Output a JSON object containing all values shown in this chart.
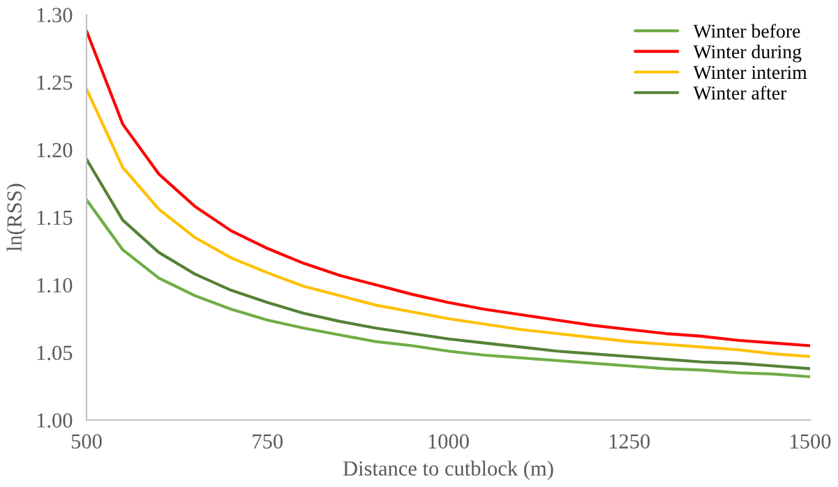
{
  "chart_data": {
    "type": "line",
    "xlabel": "Distance to cutblock (m)",
    "ylabel": "ln(RSS)",
    "x": [
      500,
      550,
      600,
      650,
      700,
      750,
      800,
      850,
      900,
      950,
      1000,
      1050,
      1100,
      1150,
      1200,
      1250,
      1300,
      1350,
      1400,
      1450,
      1500
    ],
    "series": [
      {
        "name": "Winter before",
        "color": "#70ad47",
        "values": [
          1.163,
          1.126,
          1.105,
          1.092,
          1.082,
          1.074,
          1.068,
          1.063,
          1.058,
          1.055,
          1.051,
          1.048,
          1.046,
          1.044,
          1.042,
          1.04,
          1.038,
          1.037,
          1.035,
          1.034,
          1.032
        ]
      },
      {
        "name": "Winter during",
        "color": "#ff0000",
        "values": [
          1.288,
          1.219,
          1.182,
          1.158,
          1.14,
          1.127,
          1.116,
          1.107,
          1.1,
          1.093,
          1.087,
          1.082,
          1.078,
          1.074,
          1.07,
          1.067,
          1.064,
          1.062,
          1.059,
          1.057,
          1.055
        ]
      },
      {
        "name": "Winter interim",
        "color": "#ffc000",
        "values": [
          1.245,
          1.187,
          1.156,
          1.135,
          1.12,
          1.109,
          1.099,
          1.092,
          1.085,
          1.08,
          1.075,
          1.071,
          1.067,
          1.064,
          1.061,
          1.058,
          1.056,
          1.054,
          1.052,
          1.049,
          1.047
        ]
      },
      {
        "name": "Winter after",
        "color": "#548235",
        "values": [
          1.193,
          1.148,
          1.124,
          1.108,
          1.096,
          1.087,
          1.079,
          1.073,
          1.068,
          1.064,
          1.06,
          1.057,
          1.054,
          1.051,
          1.049,
          1.047,
          1.045,
          1.043,
          1.042,
          1.04,
          1.038
        ]
      }
    ],
    "xlim": [
      500,
      1500
    ],
    "xticks": [
      500,
      750,
      1000,
      1250,
      1500
    ],
    "ylim": [
      1.0,
      1.3
    ],
    "yticks": [
      {
        "value": 1.0,
        "label": "1.00"
      },
      {
        "value": 1.05,
        "label": "1.05"
      },
      {
        "value": 1.1,
        "label": "1.10"
      },
      {
        "value": 1.15,
        "label": "1.15"
      },
      {
        "value": 1.2,
        "label": "1.20"
      },
      {
        "value": 1.25,
        "label": "1.25"
      },
      {
        "value": 1.3,
        "label": "1.30"
      }
    ],
    "grid": false,
    "legend": "top right"
  }
}
